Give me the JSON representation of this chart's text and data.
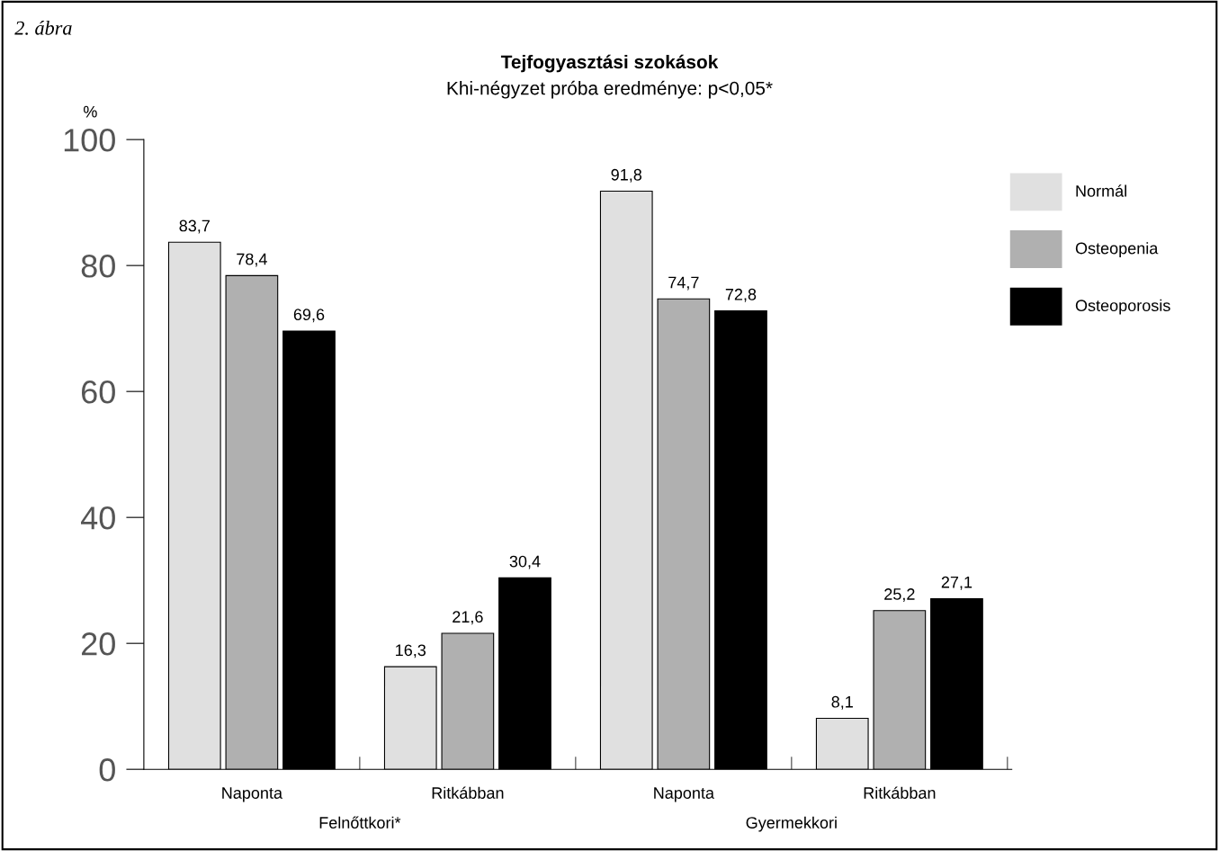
{
  "chart_data": {
    "type": "bar",
    "title": "Tejfogyasztási szokások",
    "subtitle": "Khi-négyzet próba eredménye: p<0,05*",
    "ylabel": "%",
    "annotations": [
      "2. ábra",
      "Felnőttkori*",
      "Gyermekkori"
    ],
    "categories": [
      "Naponta",
      "Ritkábban",
      "Naponta",
      "Ritkábban"
    ],
    "series": [
      {
        "name": "Normál",
        "color": "#e0e0e0",
        "values": [
          83.7,
          16.3,
          91.8,
          8.1
        ],
        "value_labels": [
          "83,7",
          "16,3",
          "91,8",
          "8,1"
        ]
      },
      {
        "name": "Osteopenia",
        "color": "#b0b0b0",
        "values": [
          78.4,
          21.6,
          74.7,
          25.2
        ],
        "value_labels": [
          "78,4",
          "21,6",
          "74,7",
          "25,2"
        ]
      },
      {
        "name": "Osteoporosis",
        "color": "#000000",
        "values": [
          69.6,
          30.4,
          72.8,
          27.1
        ],
        "value_labels": [
          "69,6",
          "30,4",
          "72,8",
          "27,1"
        ]
      }
    ],
    "ylim": [
      0,
      100
    ],
    "yticks": [
      0,
      20,
      40,
      60,
      80,
      100
    ],
    "grid": false,
    "legend": "top right"
  }
}
